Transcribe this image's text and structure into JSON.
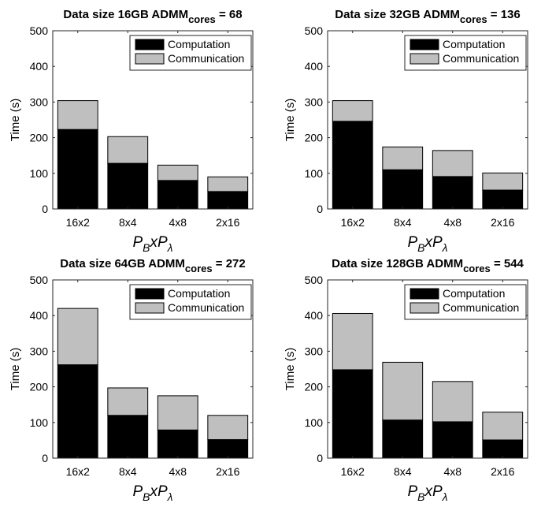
{
  "chart_data": [
    {
      "type": "bar",
      "stacked": true,
      "title": "Data size 16GB  ADMM",
      "title_sub": "cores",
      "title_tail": " = 68",
      "xlabel": {
        "p1": "P",
        "s1": "B",
        "mid": "xP",
        "s2": "λ"
      },
      "ylabel": "Time (s)",
      "ylim": [
        0,
        500
      ],
      "yticks": [
        0,
        100,
        200,
        300,
        400,
        500
      ],
      "categories": [
        "16x2",
        "8x4",
        "4x8",
        "2x16"
      ],
      "series": [
        {
          "name": "Computation",
          "color": "#000000",
          "values": [
            223,
            128,
            80,
            49
          ]
        },
        {
          "name": "Communication",
          "color": "#bfbfbf",
          "values": [
            81,
            75,
            43,
            41
          ]
        }
      ],
      "legend": "top-right"
    },
    {
      "type": "bar",
      "stacked": true,
      "title": "Data size 32GB  ADMM",
      "title_sub": "cores",
      "title_tail": " = 136",
      "xlabel": {
        "p1": "P",
        "s1": "B",
        "mid": "xP",
        "s2": "λ"
      },
      "ylabel": "Time (s)",
      "ylim": [
        0,
        500
      ],
      "yticks": [
        0,
        100,
        200,
        300,
        400,
        500
      ],
      "categories": [
        "16x2",
        "8x4",
        "4x8",
        "2x16"
      ],
      "series": [
        {
          "name": "Computation",
          "color": "#000000",
          "values": [
            246,
            110,
            91,
            53
          ]
        },
        {
          "name": "Communication",
          "color": "#bfbfbf",
          "values": [
            58,
            64,
            73,
            48
          ]
        }
      ],
      "legend": "top-right"
    },
    {
      "type": "bar",
      "stacked": true,
      "title": "Data size 64GB  ADMM",
      "title_sub": "cores",
      "title_tail": " = 272",
      "xlabel": {
        "p1": "P",
        "s1": "B",
        "mid": "xP",
        "s2": "λ"
      },
      "ylabel": "Time (s)",
      "ylim": [
        0,
        500
      ],
      "yticks": [
        0,
        100,
        200,
        300,
        400,
        500
      ],
      "categories": [
        "16x2",
        "8x4",
        "4x8",
        "2x16"
      ],
      "series": [
        {
          "name": "Computation",
          "color": "#000000",
          "values": [
            262,
            120,
            79,
            52
          ]
        },
        {
          "name": "Communication",
          "color": "#bfbfbf",
          "values": [
            158,
            77,
            96,
            68
          ]
        }
      ],
      "legend": "top-right"
    },
    {
      "type": "bar",
      "stacked": true,
      "title": "Data size 128GB  ADMM",
      "title_sub": "cores",
      "title_tail": " = 544",
      "xlabel": {
        "p1": "P",
        "s1": "B",
        "mid": "xP",
        "s2": "λ"
      },
      "ylabel": "Time (s)",
      "ylim": [
        0,
        500
      ],
      "yticks": [
        0,
        100,
        200,
        300,
        400,
        500
      ],
      "categories": [
        "16x2",
        "8x4",
        "4x8",
        "2x16"
      ],
      "series": [
        {
          "name": "Computation",
          "color": "#000000",
          "values": [
            248,
            107,
            102,
            51
          ]
        },
        {
          "name": "Communication",
          "color": "#bfbfbf",
          "values": [
            158,
            162,
            113,
            78
          ]
        }
      ],
      "legend": "top-right"
    }
  ]
}
